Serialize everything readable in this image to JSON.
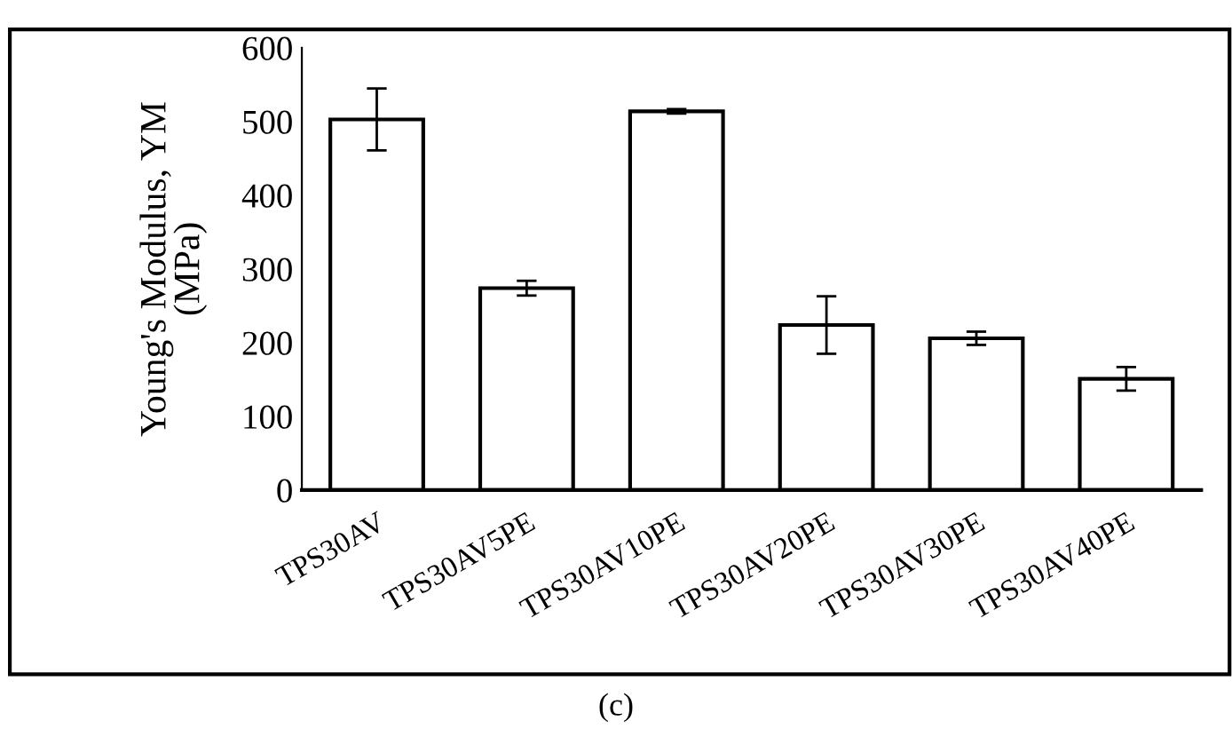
{
  "chart_data": {
    "type": "bar",
    "ylabel": "Young's Modulus, YM\n(MPa)",
    "categories": [
      "TPS30AV",
      "TPS30AV5PE",
      "TPS30AV10PE",
      "TPS30AV20PE",
      "TPS30AV30PE",
      "TPS30AV40PE"
    ],
    "values": [
      503,
      274,
      514,
      224,
      206,
      151
    ],
    "errors": [
      42,
      10,
      3,
      39,
      9,
      16
    ],
    "color": "#ffffff",
    "ylim": [
      0,
      600
    ],
    "yticks": [
      0,
      100,
      200,
      300,
      400,
      500,
      600
    ],
    "grid": false,
    "annotations": [
      "(c)"
    ]
  }
}
